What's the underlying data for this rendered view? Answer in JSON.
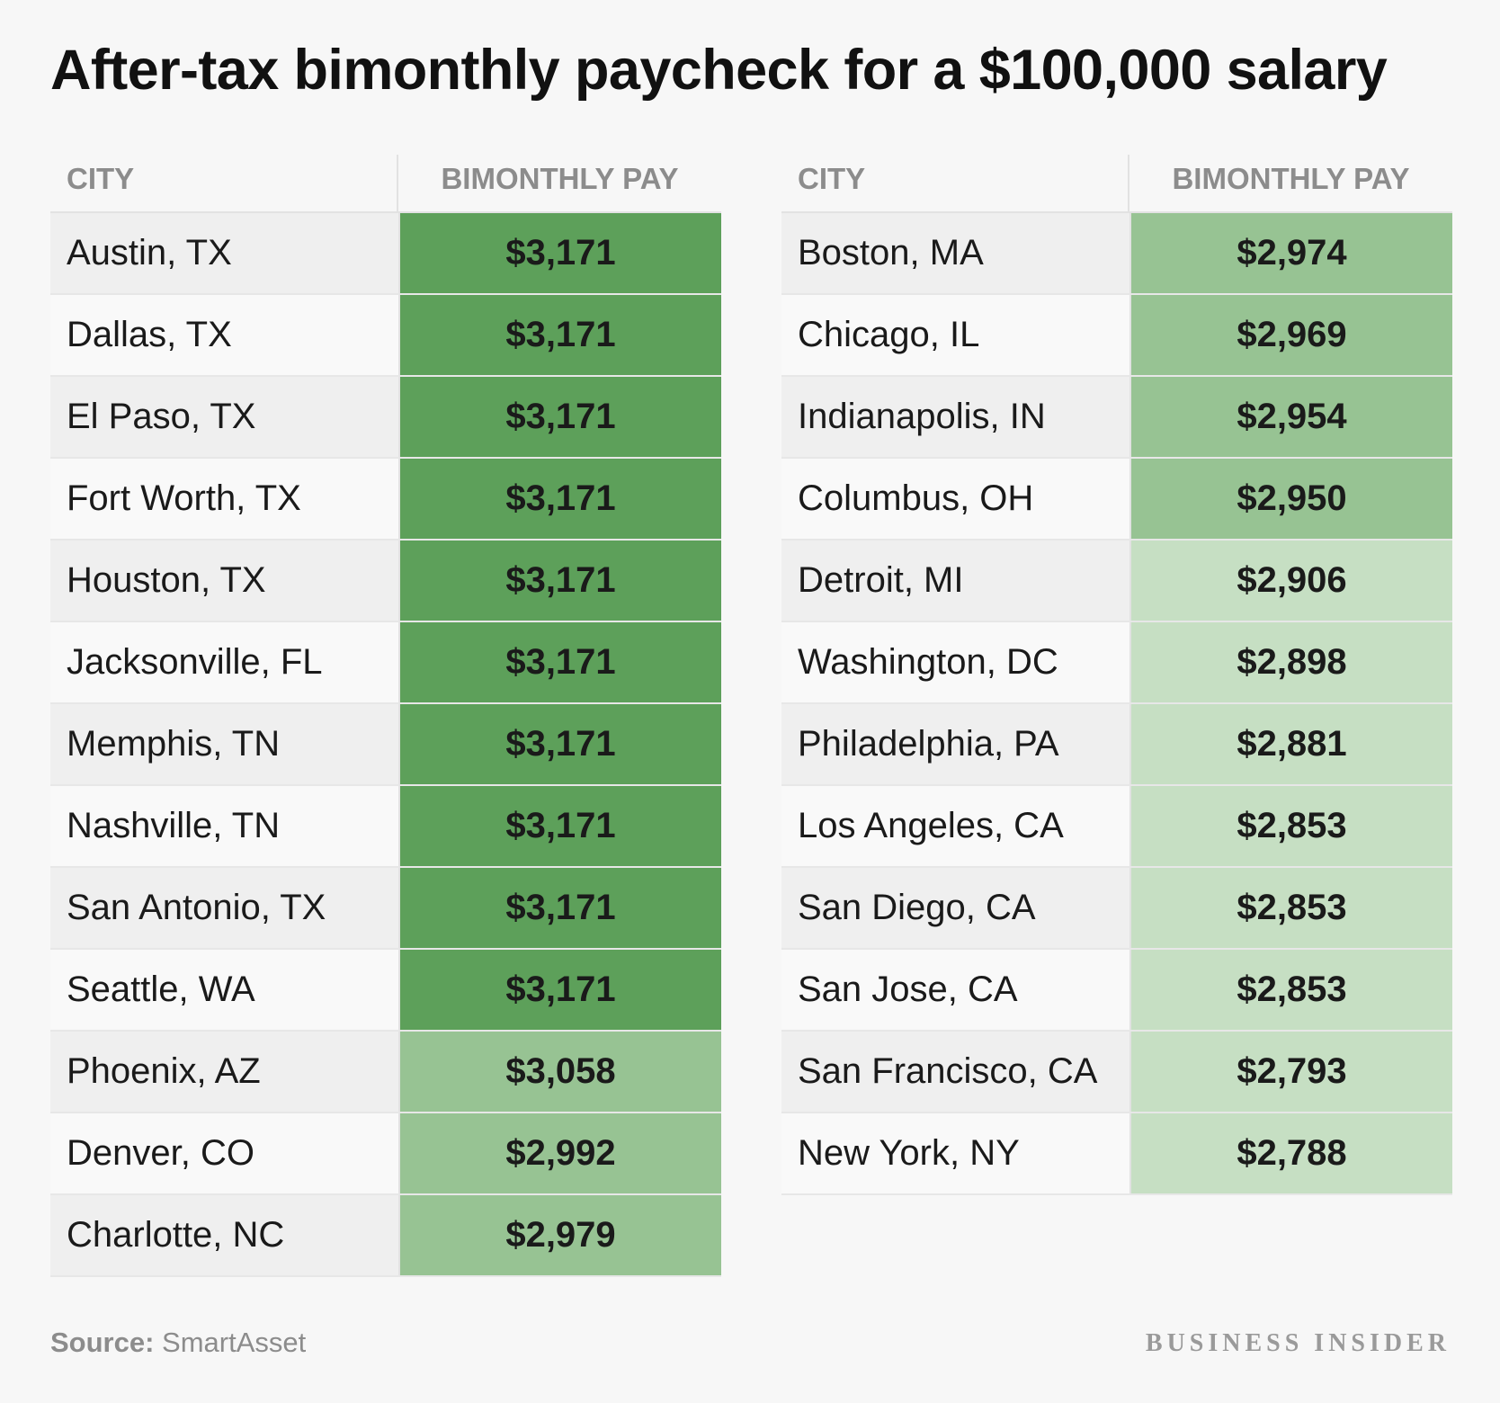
{
  "title": "After-tax bimonthly paycheck for a $100,000 salary",
  "colors": {
    "tier_high": "#5da05a",
    "tier_mid": "#97c393",
    "tier_low": "#c6dfc3"
  },
  "chart_data": {
    "type": "table",
    "title": "After-tax bimonthly paycheck for a $100,000 salary",
    "columns": [
      "CITY",
      "BIMONTHLY PAY"
    ],
    "tables": [
      {
        "rows": [
          {
            "city": "Austin, TX",
            "pay": "$3,171",
            "value": 3171
          },
          {
            "city": "Dallas, TX",
            "pay": "$3,171",
            "value": 3171
          },
          {
            "city": "El Paso, TX",
            "pay": "$3,171",
            "value": 3171
          },
          {
            "city": "Fort Worth, TX",
            "pay": "$3,171",
            "value": 3171
          },
          {
            "city": "Houston, TX",
            "pay": "$3,171",
            "value": 3171
          },
          {
            "city": "Jacksonville, FL",
            "pay": "$3,171",
            "value": 3171
          },
          {
            "city": "Memphis, TN",
            "pay": "$3,171",
            "value": 3171
          },
          {
            "city": "Nashville, TN",
            "pay": "$3,171",
            "value": 3171
          },
          {
            "city": "San Antonio, TX",
            "pay": "$3,171",
            "value": 3171
          },
          {
            "city": "Seattle, WA",
            "pay": "$3,171",
            "value": 3171
          },
          {
            "city": "Phoenix, AZ",
            "pay": "$3,058",
            "value": 3058
          },
          {
            "city": "Denver, CO",
            "pay": "$2,992",
            "value": 2992
          },
          {
            "city": "Charlotte, NC",
            "pay": "$2,979",
            "value": 2979
          }
        ]
      },
      {
        "rows": [
          {
            "city": "Boston, MA",
            "pay": "$2,974",
            "value": 2974
          },
          {
            "city": "Chicago, IL",
            "pay": "$2,969",
            "value": 2969
          },
          {
            "city": "Indianapolis, IN",
            "pay": "$2,954",
            "value": 2954
          },
          {
            "city": "Columbus, OH",
            "pay": "$2,950",
            "value": 2950
          },
          {
            "city": "Detroit, MI",
            "pay": "$2,906",
            "value": 2906
          },
          {
            "city": "Washington, DC",
            "pay": "$2,898",
            "value": 2898
          },
          {
            "city": "Philadelphia, PA",
            "pay": "$2,881",
            "value": 2881
          },
          {
            "city": "Los Angeles, CA",
            "pay": "$2,853",
            "value": 2853
          },
          {
            "city": "San Diego, CA",
            "pay": "$2,853",
            "value": 2853
          },
          {
            "city": "San Jose, CA",
            "pay": "$2,853",
            "value": 2853
          },
          {
            "city": "San Francisco, CA",
            "pay": "$2,793",
            "value": 2793
          },
          {
            "city": "New York, NY",
            "pay": "$2,788",
            "value": 2788
          }
        ]
      }
    ]
  },
  "footer": {
    "source_label": "Source:",
    "source_name": "SmartAsset",
    "brand": "BUSINESS INSIDER"
  }
}
